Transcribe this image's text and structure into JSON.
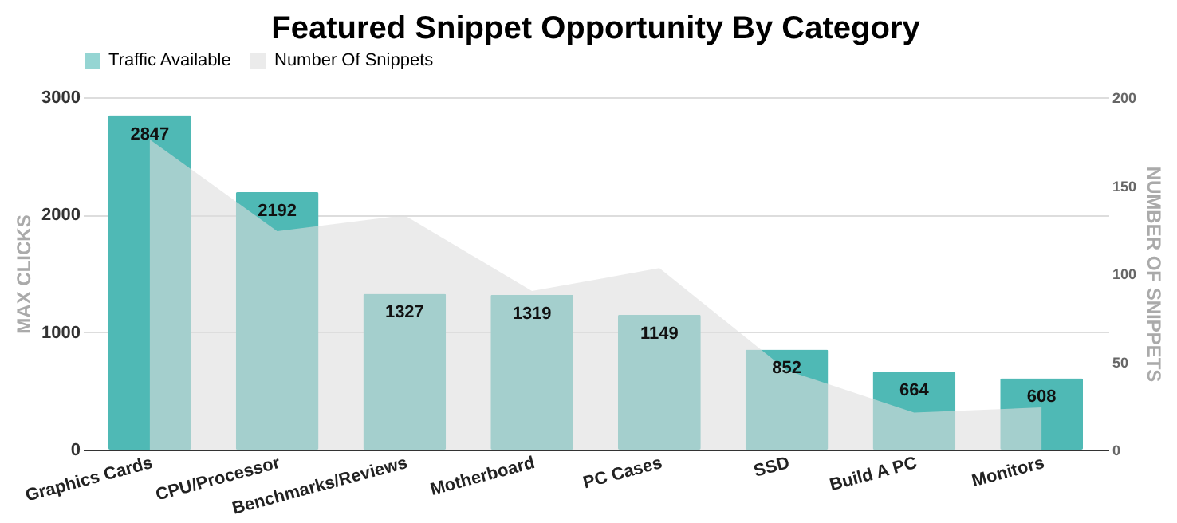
{
  "chart_data": {
    "type": "bar",
    "title": "Featured Snippet Opportunity By Category",
    "categories": [
      "Graphics Cards",
      "CPU/Processor",
      "Benchmarks/Reviews",
      "Motherboard",
      "PC Cases",
      "SSD",
      "Build A PC",
      "Monitors"
    ],
    "series": [
      {
        "name": "Traffic Available",
        "color": "#4fb9b5",
        "values": [
          2847,
          2192,
          1327,
          1319,
          1149,
          852,
          664,
          608
        ],
        "value_labels": [
          "2847",
          "2192",
          "1327",
          "1319",
          "1149",
          "852",
          "664",
          "608"
        ]
      },
      {
        "name": "Number Of Snippets",
        "type": "area",
        "axis": "y2",
        "color": "#dddddd",
        "values": [
          176,
          124,
          133,
          90,
          103,
          45,
          21,
          24
        ]
      }
    ],
    "ylabel": "MAX CLICKS",
    "y2label": "NUMBER OF SNIPPETS",
    "ylim": [
      0,
      3000
    ],
    "yticks": [
      0,
      1000,
      2000,
      3000
    ],
    "y2lim": [
      0,
      200
    ],
    "y2ticks": [
      0,
      50,
      100,
      150,
      200
    ],
    "grid": "y",
    "legend": "top"
  }
}
